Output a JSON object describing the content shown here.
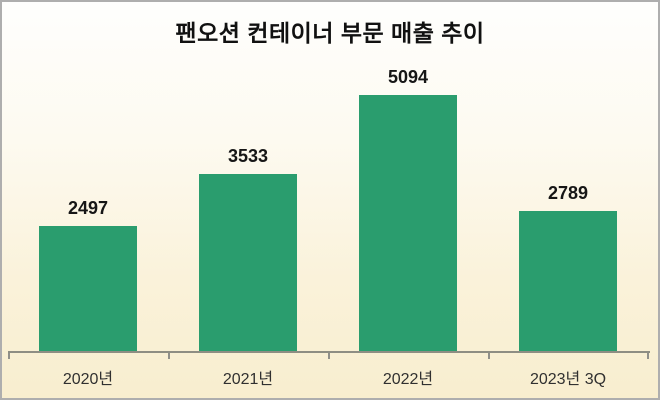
{
  "title": "팬오션 컨테이너 부문 매출 추이",
  "chart_data": {
    "type": "bar",
    "title": "팬오션 컨테이너 부문 매출 추이",
    "categories": [
      "2020년",
      "2021년",
      "2022년",
      "2023년 3Q"
    ],
    "values": [
      2497,
      3533,
      5094,
      2789
    ],
    "xlabel": "",
    "ylabel": "",
    "ylim": [
      0,
      5600
    ],
    "grid": false,
    "legend": false,
    "bar_color": "#2a9d6e",
    "background_top": "#fefefd",
    "background_bottom": "#f8eecf",
    "axis_color": "#8e8e83",
    "frame_border_color": "#aeaeae",
    "value_label_color": "#161616",
    "title_color": "#111111"
  }
}
